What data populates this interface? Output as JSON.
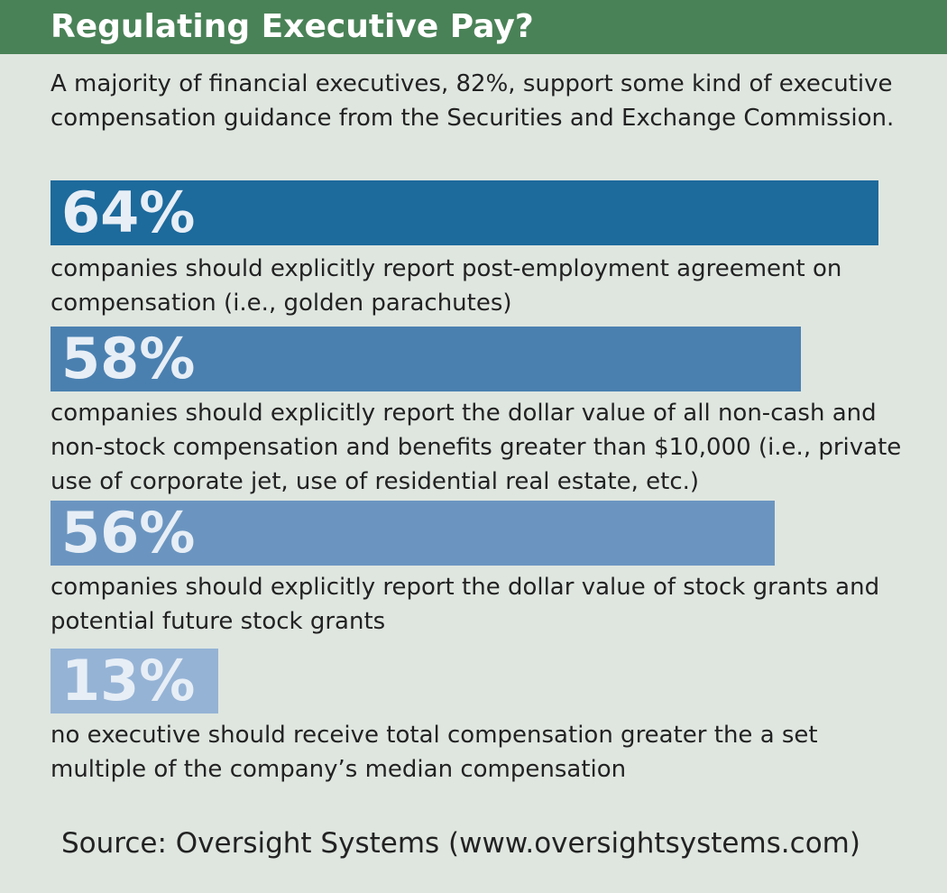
{
  "header": {
    "title": "Regulating Executive Pay?"
  },
  "intro": "A majority of financial executives, 82%, support some kind of executive compensation guidance from the Securities and Exchange Commission.",
  "source": "Source: Oversight Systems (www.oversightsystems.com)",
  "colors": {
    "header_bg": "#4a8257",
    "background": "#dfe6e0",
    "bar_64": "#1d6a9c",
    "bar_58": "#4a80b0",
    "bar_56": "#6b95c0",
    "bar_13": "#95b3d5"
  },
  "chart_data": {
    "type": "bar",
    "orientation": "horizontal",
    "categories": [
      "companies should explicitly report post-employment agreement on compensation (i.e., golden parachutes)",
      "companies should explicitly report the dollar value of all non-cash and non-stock compensation and benefits greater than $10,000 (i.e., private use of corporate jet, use of residential real estate, etc.)",
      "companies should explicitly report the dollar value of stock grants and potential future stock grants",
      "no executive should receive total compensation greater the a set multiple of the company’s median compensation"
    ],
    "values": [
      64,
      58,
      56,
      13
    ],
    "value_labels": [
      "64%",
      "58%",
      "56%",
      "13%"
    ],
    "bar_colors": [
      "#1d6a9c",
      "#4a80b0",
      "#6b95c0",
      "#95b3d5"
    ],
    "title": "Regulating Executive Pay?",
    "xlabel": "",
    "ylabel": "",
    "xlim": [
      0,
      70
    ],
    "grid": false,
    "legend": "none"
  }
}
